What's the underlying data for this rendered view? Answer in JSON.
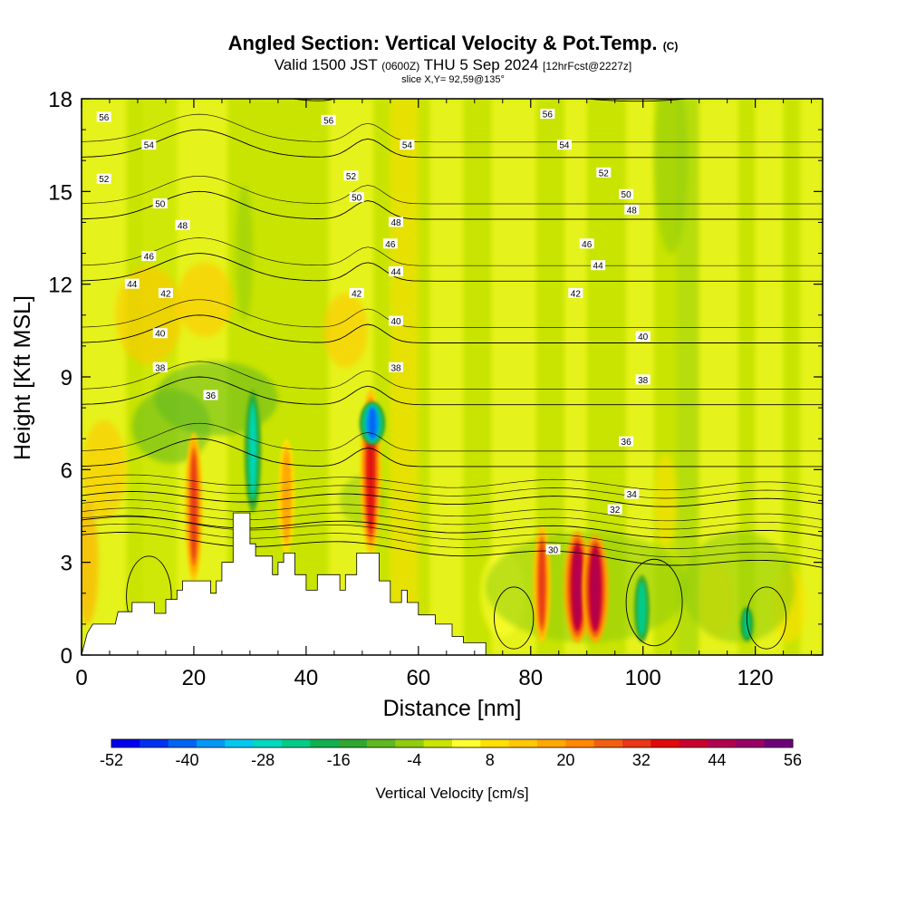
{
  "header": {
    "title": "Angled Section: Vertical Velocity & Pot.Temp.",
    "title_unit": "(C)",
    "valid_prefix": "Valid 1500 JST",
    "valid_utc": "(0600Z)",
    "valid_date": "THU 5 Sep 2024",
    "forecast_tag": "[12hrFcst@2227z]",
    "slice": "slice X,Y= 92,59@135°"
  },
  "chart_data": {
    "type": "heatmap",
    "xlabel": "Distance [nm]",
    "ylabel": "Height [Kft MSL]",
    "xlim": [
      0,
      132
    ],
    "ylim": [
      0,
      18
    ],
    "x_ticks": [
      "0",
      "20",
      "40",
      "60",
      "80",
      "100",
      "120"
    ],
    "y_ticks": [
      "0",
      "3",
      "6",
      "9",
      "12",
      "15",
      "18"
    ],
    "colorbar": {
      "label": "Vertical Velocity [cm/s]",
      "ticks": [
        "-52",
        "-40",
        "-28",
        "-16",
        "-4",
        "8",
        "20",
        "32",
        "44",
        "56"
      ],
      "colors": [
        "#0000ee",
        "#0033f0",
        "#0066f2",
        "#0099f4",
        "#00c8f0",
        "#00d8c0",
        "#00cc88",
        "#10b050",
        "#30a830",
        "#60b820",
        "#90cc10",
        "#c8e400",
        "#ffff33",
        "#ffe000",
        "#ffc800",
        "#ffa800",
        "#ff8800",
        "#f06010",
        "#e83818",
        "#e00a0a",
        "#c80030",
        "#b00050",
        "#980068",
        "#70007a"
      ]
    },
    "terrain_kft": [
      [
        0,
        0
      ],
      [
        1,
        0.7
      ],
      [
        2,
        1
      ],
      [
        6,
        1
      ],
      [
        6.5,
        1.4
      ],
      [
        9,
        1.4
      ],
      [
        9,
        1.7
      ],
      [
        13,
        1.7
      ],
      [
        13,
        1.35
      ],
      [
        15,
        1.35
      ],
      [
        15,
        1.8
      ],
      [
        17,
        1.8
      ],
      [
        17,
        2.1
      ],
      [
        18,
        2.1
      ],
      [
        18,
        2.4
      ],
      [
        23,
        2.4
      ],
      [
        23,
        2.0
      ],
      [
        24,
        2.0
      ],
      [
        24,
        2.4
      ],
      [
        25,
        2.4
      ],
      [
        25,
        3.0
      ],
      [
        27,
        3.0
      ],
      [
        27,
        4.6
      ],
      [
        30,
        4.6
      ],
      [
        30,
        3.6
      ],
      [
        31,
        3.6
      ],
      [
        31,
        3.2
      ],
      [
        34,
        3.2
      ],
      [
        34,
        2.6
      ],
      [
        35,
        2.6
      ],
      [
        35,
        3.0
      ],
      [
        36,
        3.0
      ],
      [
        36,
        3.3
      ],
      [
        38,
        3.3
      ],
      [
        38,
        2.6
      ],
      [
        40,
        2.6
      ],
      [
        40,
        2.1
      ],
      [
        42,
        2.1
      ],
      [
        42,
        2.6
      ],
      [
        46,
        2.6
      ],
      [
        46,
        2.1
      ],
      [
        47,
        2.1
      ],
      [
        47,
        2.6
      ],
      [
        49,
        2.6
      ],
      [
        49,
        3.3
      ],
      [
        53,
        3.3
      ],
      [
        53,
        2.4
      ],
      [
        55,
        2.4
      ],
      [
        55,
        1.7
      ],
      [
        57,
        1.7
      ],
      [
        57,
        2.1
      ],
      [
        58,
        2.1
      ],
      [
        58,
        1.7
      ],
      [
        60,
        1.7
      ],
      [
        60,
        1.3
      ],
      [
        63,
        1.3
      ],
      [
        63,
        1.0
      ],
      [
        66,
        1.0
      ],
      [
        66,
        0.6
      ],
      [
        68,
        0.6
      ],
      [
        68,
        0.4
      ],
      [
        72,
        0.4
      ],
      [
        72,
        0
      ],
      [
        132,
        0
      ]
    ],
    "pot_temp_contours_c": [
      {
        "level": 30,
        "label": "30"
      },
      {
        "level": 32,
        "label": "32"
      },
      {
        "level": 34,
        "label": "34"
      },
      {
        "level": 36,
        "label": "36"
      },
      {
        "level": 38,
        "label": "38"
      },
      {
        "level": 40,
        "label": "40"
      },
      {
        "level": 42,
        "label": "42"
      },
      {
        "level": 44,
        "label": "44"
      },
      {
        "level": 46,
        "label": "46"
      },
      {
        "level": 48,
        "label": "48"
      },
      {
        "level": 50,
        "label": "50"
      },
      {
        "level": 52,
        "label": "52"
      },
      {
        "level": 54,
        "label": "54"
      },
      {
        "level": 56,
        "label": "56"
      }
    ],
    "velocity_features": [
      {
        "x": 20,
        "z_bottom": 2.4,
        "z_top": 7.2,
        "peak": 30
      },
      {
        "x": 30.5,
        "z_bottom": 4.6,
        "z_top": 8.6,
        "peak": -30
      },
      {
        "x": 36.5,
        "z_bottom": 3.3,
        "z_top": 7.0,
        "peak": 18
      },
      {
        "x": 51.5,
        "z_bottom": 3.3,
        "z_top": 8.6,
        "peak": 36
      },
      {
        "x": 51.8,
        "z_bottom": 6.8,
        "z_top": 8.2,
        "peak": -45
      },
      {
        "x": 82,
        "z_bottom": 0.4,
        "z_top": 4.2,
        "peak": 30
      },
      {
        "x": 88.3,
        "z_bottom": 0.4,
        "z_top": 4.0,
        "peak": 46
      },
      {
        "x": 91.5,
        "z_bottom": 0.4,
        "z_top": 3.9,
        "peak": 46
      },
      {
        "x": 99.8,
        "z_bottom": 0.4,
        "z_top": 2.6,
        "peak": -28
      },
      {
        "x": 118.5,
        "z_bottom": 0.4,
        "z_top": 1.6,
        "peak": -26
      }
    ]
  }
}
